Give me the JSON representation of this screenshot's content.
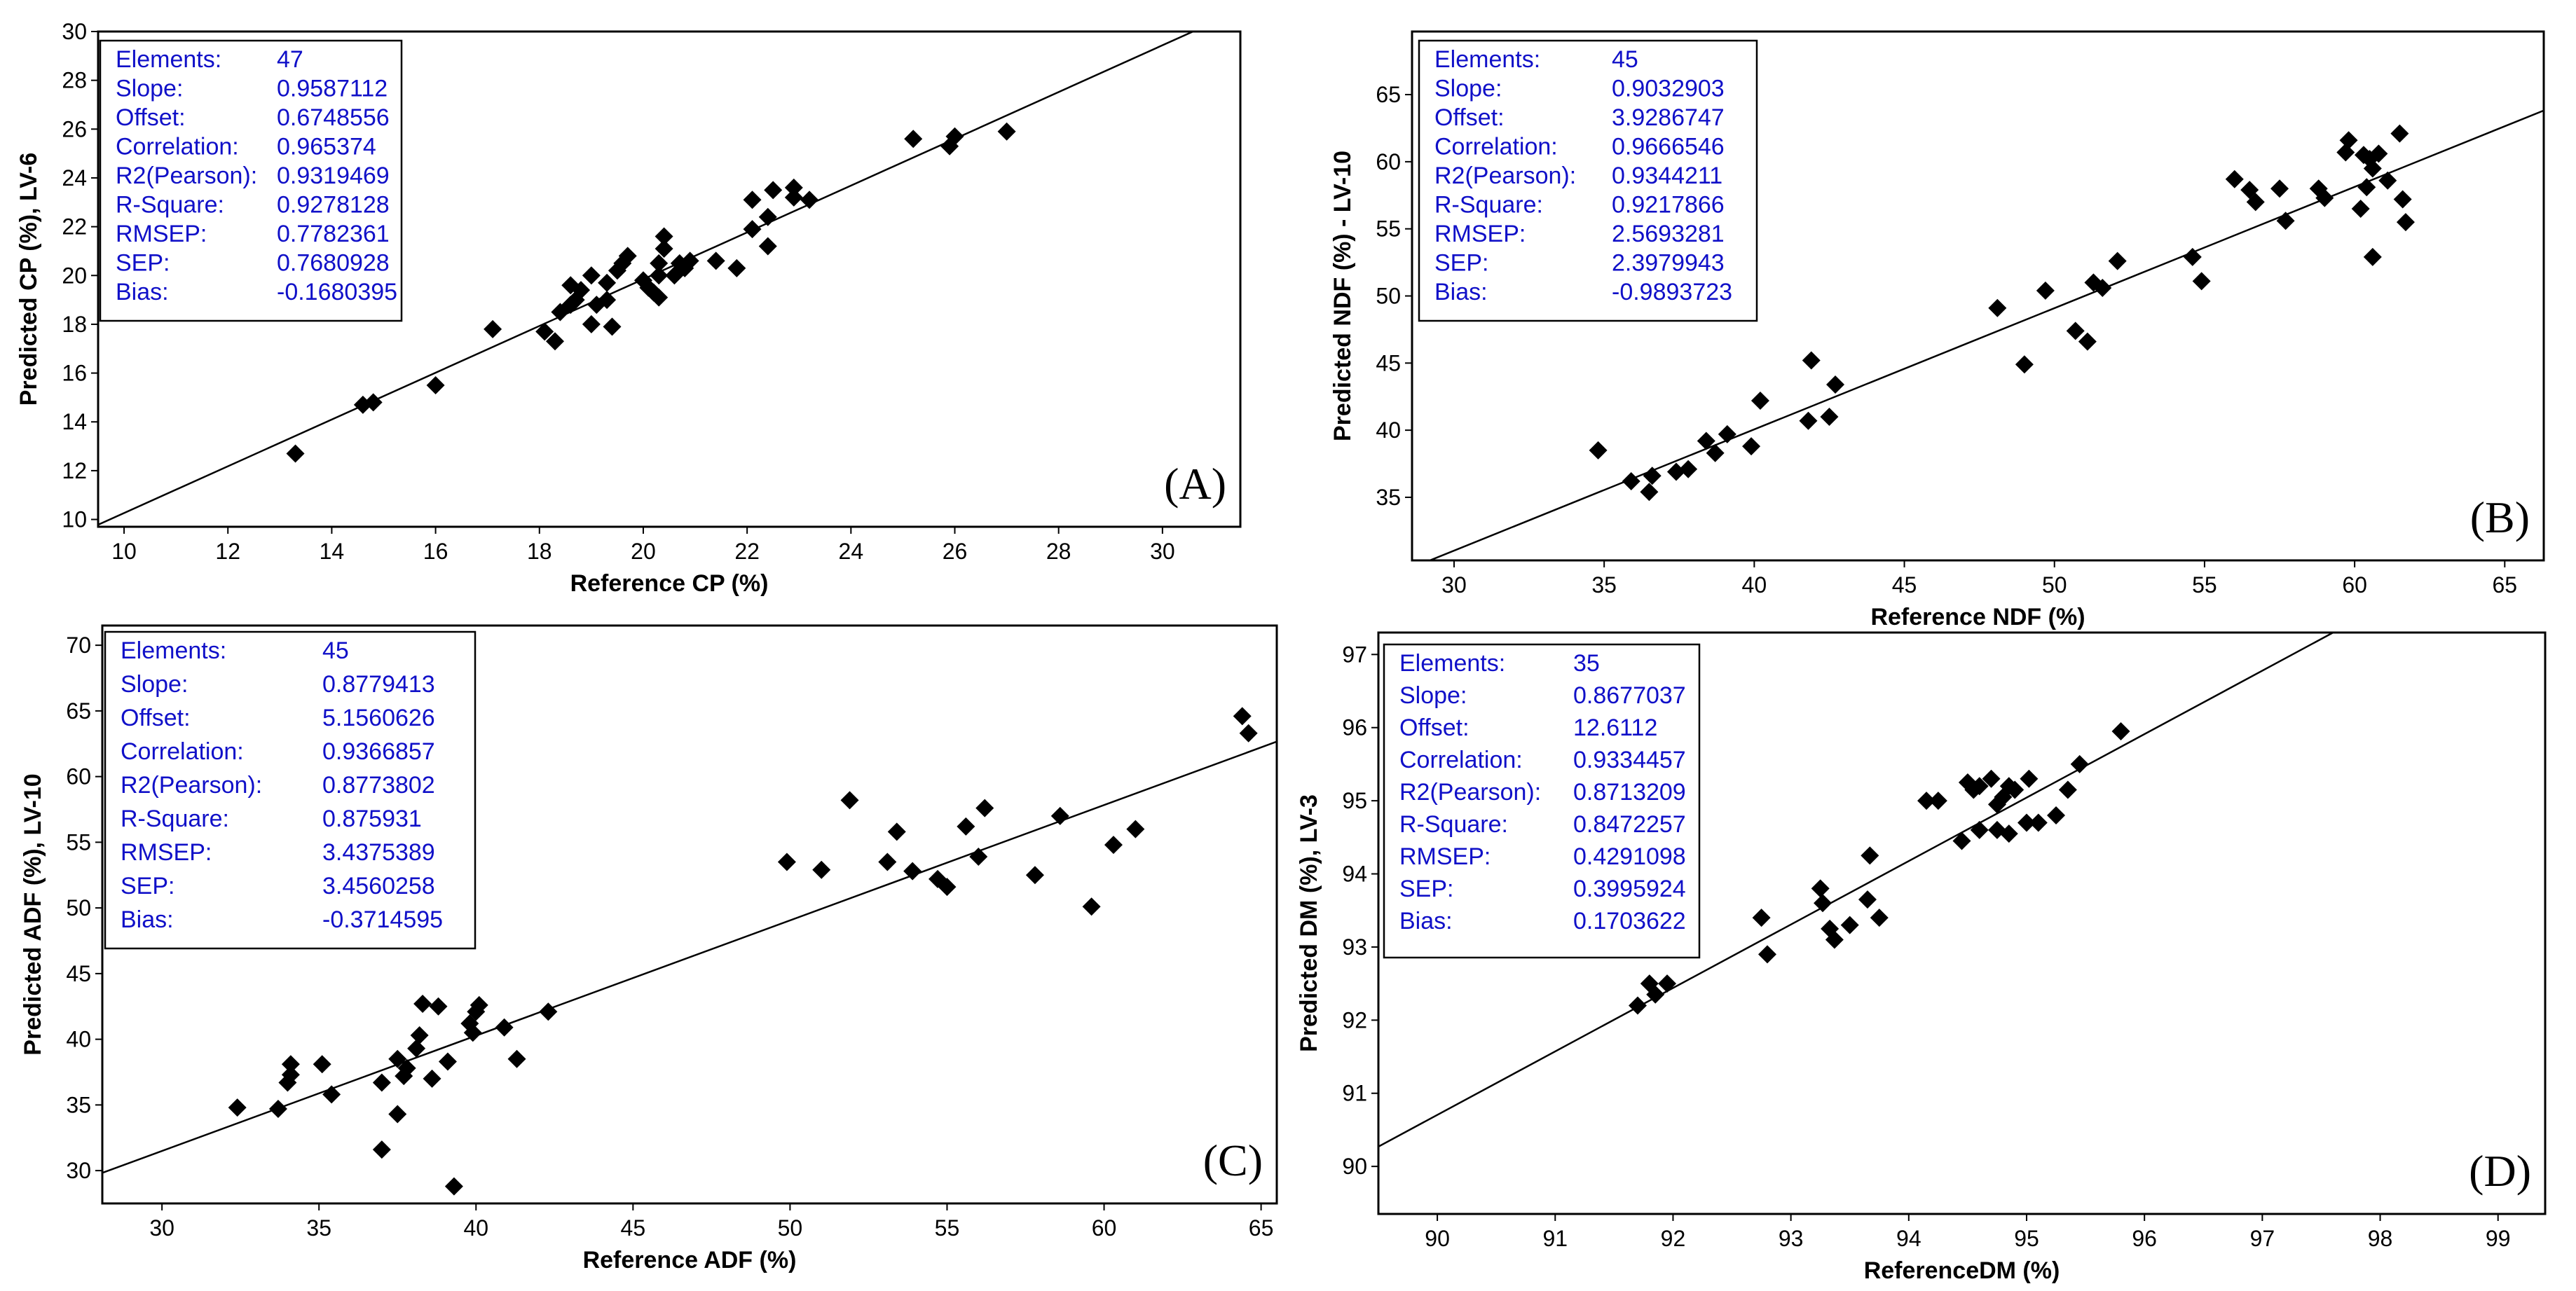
{
  "chart_data": [
    {
      "type": "scatter",
      "panel_label": "(A)",
      "xlabel": "Reference CP (%)",
      "ylabel": "Predicted  CP (%), LV-6",
      "xlim": [
        9.5,
        31.5
      ],
      "ylim": [
        9.7,
        30
      ],
      "xticks": [
        10,
        12,
        14,
        16,
        18,
        20,
        22,
        24,
        26,
        28,
        30
      ],
      "yticks": [
        10,
        12,
        14,
        16,
        18,
        20,
        22,
        24,
        26,
        28,
        30
      ],
      "line": {
        "slope": 0.9587112,
        "offset": 0.6748556
      },
      "stats": [
        {
          "label": "Elements:",
          "value": "47"
        },
        {
          "label": "Slope:",
          "value": "0.9587112"
        },
        {
          "label": "Offset:",
          "value": "0.6748556"
        },
        {
          "label": "Correlation:",
          "value": "0.965374"
        },
        {
          "label": "R2(Pearson):",
          "value": "0.9319469"
        },
        {
          "label": "R-Square:",
          "value": "0.9278128"
        },
        {
          "label": "RMSEP:",
          "value": "0.7782361"
        },
        {
          "label": "SEP:",
          "value": "0.7680928"
        },
        {
          "label": "Bias:",
          "value": "-0.1680395"
        }
      ],
      "points": [
        [
          13.3,
          12.7
        ],
        [
          14.6,
          14.7
        ],
        [
          14.8,
          14.8
        ],
        [
          16.0,
          15.5
        ],
        [
          17.1,
          17.8
        ],
        [
          18.1,
          17.7
        ],
        [
          18.3,
          17.3
        ],
        [
          18.4,
          18.5
        ],
        [
          18.6,
          18.8
        ],
        [
          18.7,
          19.0
        ],
        [
          18.8,
          19.4
        ],
        [
          18.6,
          19.6
        ],
        [
          19.0,
          18.0
        ],
        [
          19.1,
          18.8
        ],
        [
          19.3,
          19.0
        ],
        [
          19.0,
          20.0
        ],
        [
          19.3,
          19.7
        ],
        [
          19.5,
          20.2
        ],
        [
          19.6,
          20.5
        ],
        [
          19.7,
          20.8
        ],
        [
          19.4,
          17.9
        ],
        [
          20.0,
          19.8
        ],
        [
          20.1,
          19.5
        ],
        [
          20.2,
          19.3
        ],
        [
          20.3,
          19.1
        ],
        [
          20.3,
          20.5
        ],
        [
          20.3,
          20.0
        ],
        [
          20.4,
          21.1
        ],
        [
          20.4,
          21.6
        ],
        [
          20.6,
          20.0
        ],
        [
          20.7,
          20.5
        ],
        [
          20.8,
          20.3
        ],
        [
          20.9,
          20.6
        ],
        [
          21.4,
          20.6
        ],
        [
          21.8,
          20.3
        ],
        [
          22.1,
          21.9
        ],
        [
          22.1,
          23.1
        ],
        [
          22.4,
          21.2
        ],
        [
          22.4,
          22.4
        ],
        [
          22.5,
          23.5
        ],
        [
          22.9,
          23.2
        ],
        [
          22.9,
          23.6
        ],
        [
          23.2,
          23.1
        ],
        [
          25.2,
          25.6
        ],
        [
          25.9,
          25.3
        ],
        [
          26.0,
          25.7
        ],
        [
          27.0,
          25.9
        ]
      ]
    },
    {
      "type": "scatter",
      "panel_label": "(B)",
      "xlabel": "Reference NDF (%)",
      "ylabel": "Predicted NDF (%) - LV-10",
      "xlim": [
        28.6,
        66.3
      ],
      "ylim": [
        30.3,
        69.7
      ],
      "xticks": [
        30,
        35,
        40,
        45,
        50,
        55,
        60,
        65
      ],
      "yticks": [
        35,
        40,
        45,
        50,
        55,
        60,
        65
      ],
      "line": {
        "slope": 0.9032903,
        "offset": 3.9286747
      },
      "stats": [
        {
          "label": "Elements:",
          "value": "45"
        },
        {
          "label": "Slope:",
          "value": "0.9032903"
        },
        {
          "label": "Offset:",
          "value": "3.9286747"
        },
        {
          "label": "Correlation:",
          "value": "0.9666546"
        },
        {
          "label": "R2(Pearson):",
          "value": "0.9344211"
        },
        {
          "label": "R-Square:",
          "value": "0.9217866"
        },
        {
          "label": "RMSEP:",
          "value": "2.5693281"
        },
        {
          "label": "SEP:",
          "value": "2.3979943"
        },
        {
          "label": "Bias:",
          "value": "-0.9893723"
        }
      ],
      "points": [
        [
          34.8,
          38.5
        ],
        [
          35.9,
          36.2
        ],
        [
          36.5,
          35.4
        ],
        [
          36.6,
          36.6
        ],
        [
          37.4,
          36.9
        ],
        [
          37.8,
          37.1
        ],
        [
          38.4,
          39.2
        ],
        [
          38.7,
          38.3
        ],
        [
          39.1,
          39.7
        ],
        [
          39.9,
          38.8
        ],
        [
          40.2,
          42.2
        ],
        [
          41.8,
          40.7
        ],
        [
          41.9,
          45.2
        ],
        [
          42.5,
          41.0
        ],
        [
          42.7,
          43.4
        ],
        [
          48.1,
          49.1
        ],
        [
          49.0,
          44.9
        ],
        [
          49.7,
          50.4
        ],
        [
          50.7,
          47.4
        ],
        [
          51.1,
          46.6
        ],
        [
          51.3,
          51.0
        ],
        [
          51.6,
          50.6
        ],
        [
          52.1,
          52.6
        ],
        [
          54.6,
          52.9
        ],
        [
          54.9,
          51.1
        ],
        [
          56.0,
          58.7
        ],
        [
          56.5,
          57.9
        ],
        [
          56.7,
          57.0
        ],
        [
          57.5,
          58.0
        ],
        [
          57.7,
          55.6
        ],
        [
          58.8,
          58.0
        ],
        [
          59.0,
          57.3
        ],
        [
          59.7,
          60.7
        ],
        [
          59.8,
          61.6
        ],
        [
          60.2,
          56.5
        ],
        [
          60.3,
          60.5
        ],
        [
          60.4,
          58.1
        ],
        [
          60.6,
          59.5
        ],
        [
          60.5,
          60.2
        ],
        [
          60.8,
          60.6
        ],
        [
          60.6,
          52.9
        ],
        [
          61.1,
          58.6
        ],
        [
          61.5,
          62.1
        ],
        [
          61.6,
          57.2
        ],
        [
          61.7,
          55.5
        ]
      ]
    },
    {
      "type": "scatter",
      "panel_label": "(C)",
      "xlabel": "Reference ADF (%)",
      "ylabel": "Predicted ADF (%), LV-10",
      "xlim": [
        28.1,
        65.5
      ],
      "ylim": [
        27.5,
        71.5
      ],
      "xticks": [
        30,
        35,
        40,
        45,
        50,
        55,
        60,
        65
      ],
      "yticks": [
        30,
        35,
        40,
        45,
        50,
        55,
        60,
        65,
        70
      ],
      "line": {
        "slope": 0.8779413,
        "offset": 5.1560626
      },
      "stats": [
        {
          "label": "Elements:",
          "value": "45"
        },
        {
          "label": "Slope:",
          "value": "0.8779413"
        },
        {
          "label": "Offset:",
          "value": "5.1560626"
        },
        {
          "label": "Correlation:",
          "value": "0.9366857"
        },
        {
          "label": "R2(Pearson):",
          "value": "0.8773802"
        },
        {
          "label": "R-Square:",
          "value": "0.875931"
        },
        {
          "label": "RMSEP:",
          "value": "3.4375389"
        },
        {
          "label": "SEP:",
          "value": "3.4560258"
        },
        {
          "label": "Bias:",
          "value": "-0.3714595"
        }
      ],
      "points": [
        [
          32.4,
          34.8
        ],
        [
          33.7,
          34.7
        ],
        [
          34.0,
          36.7
        ],
        [
          34.1,
          37.3
        ],
        [
          34.1,
          38.1
        ],
        [
          35.1,
          38.1
        ],
        [
          35.4,
          35.8
        ],
        [
          37.0,
          36.7
        ],
        [
          37.0,
          31.6
        ],
        [
          37.5,
          34.3
        ],
        [
          37.5,
          38.5
        ],
        [
          37.7,
          37.2
        ],
        [
          37.8,
          37.8
        ],
        [
          38.1,
          39.3
        ],
        [
          38.2,
          40.3
        ],
        [
          38.3,
          42.7
        ],
        [
          38.6,
          37.0
        ],
        [
          38.8,
          42.5
        ],
        [
          39.1,
          38.3
        ],
        [
          39.3,
          28.8
        ],
        [
          39.8,
          41.2
        ],
        [
          39.9,
          40.5
        ],
        [
          40.0,
          42.1
        ],
        [
          40.1,
          42.6
        ],
        [
          40.9,
          40.9
        ],
        [
          41.3,
          38.5
        ],
        [
          42.3,
          42.1
        ],
        [
          49.9,
          53.5
        ],
        [
          51.0,
          52.9
        ],
        [
          51.9,
          58.2
        ],
        [
          53.1,
          53.5
        ],
        [
          53.4,
          55.8
        ],
        [
          53.9,
          52.8
        ],
        [
          54.7,
          52.2
        ],
        [
          55.0,
          51.6
        ],
        [
          55.6,
          56.2
        ],
        [
          56.0,
          53.9
        ],
        [
          56.2,
          57.6
        ],
        [
          57.8,
          52.5
        ],
        [
          58.6,
          57.0
        ],
        [
          59.6,
          50.1
        ],
        [
          60.3,
          54.8
        ],
        [
          61.0,
          56.0
        ],
        [
          64.4,
          64.6
        ],
        [
          64.6,
          63.3
        ]
      ]
    },
    {
      "type": "scatter",
      "panel_label": "(D)",
      "xlabel": "ReferenceDM (%)",
      "ylabel": "Predicted DM (%), LV-3",
      "xlim": [
        89.5,
        99.4
      ],
      "ylim": [
        89.35,
        97.3
      ],
      "xticks": [
        90,
        91,
        92,
        93,
        94,
        95,
        96,
        97,
        98,
        99
      ],
      "yticks": [
        90,
        91,
        92,
        93,
        94,
        95,
        96,
        97
      ],
      "line": {
        "slope": 0.8677037,
        "offset": 12.6112
      },
      "stats": [
        {
          "label": "Elements:",
          "value": "35"
        },
        {
          "label": "Slope:",
          "value": "0.8677037"
        },
        {
          "label": "Offset:",
          "value": "12.6112"
        },
        {
          "label": "Correlation:",
          "value": "0.9334457"
        },
        {
          "label": "R2(Pearson):",
          "value": "0.8713209"
        },
        {
          "label": "R-Square:",
          "value": "0.8472257"
        },
        {
          "label": "RMSEP:",
          "value": "0.4291098"
        },
        {
          "label": "SEP:",
          "value": "0.3995924"
        },
        {
          "label": "Bias:",
          "value": "0.1703622"
        }
      ],
      "points": [
        [
          91.7,
          92.2
        ],
        [
          91.8,
          92.5
        ],
        [
          91.85,
          92.35
        ],
        [
          91.95,
          92.5
        ],
        [
          92.75,
          93.4
        ],
        [
          92.8,
          92.9
        ],
        [
          93.25,
          93.8
        ],
        [
          93.27,
          93.6
        ],
        [
          93.33,
          93.25
        ],
        [
          93.37,
          93.1
        ],
        [
          93.5,
          93.3
        ],
        [
          93.65,
          93.65
        ],
        [
          93.67,
          94.25
        ],
        [
          93.75,
          93.4
        ],
        [
          94.15,
          95.0
        ],
        [
          94.25,
          95.0
        ],
        [
          94.45,
          94.45
        ],
        [
          94.5,
          95.25
        ],
        [
          94.55,
          95.15
        ],
        [
          94.6,
          95.2
        ],
        [
          94.7,
          95.3
        ],
        [
          94.75,
          94.6
        ],
        [
          94.75,
          94.95
        ],
        [
          94.8,
          95.05
        ],
        [
          94.85,
          94.55
        ],
        [
          94.9,
          95.15
        ],
        [
          95.0,
          94.7
        ],
        [
          95.02,
          95.3
        ],
        [
          95.1,
          94.7
        ],
        [
          95.25,
          94.8
        ],
        [
          95.35,
          95.15
        ],
        [
          95.45,
          95.5
        ],
        [
          95.8,
          95.95
        ],
        [
          94.85,
          95.2
        ],
        [
          94.6,
          94.6
        ]
      ]
    }
  ]
}
